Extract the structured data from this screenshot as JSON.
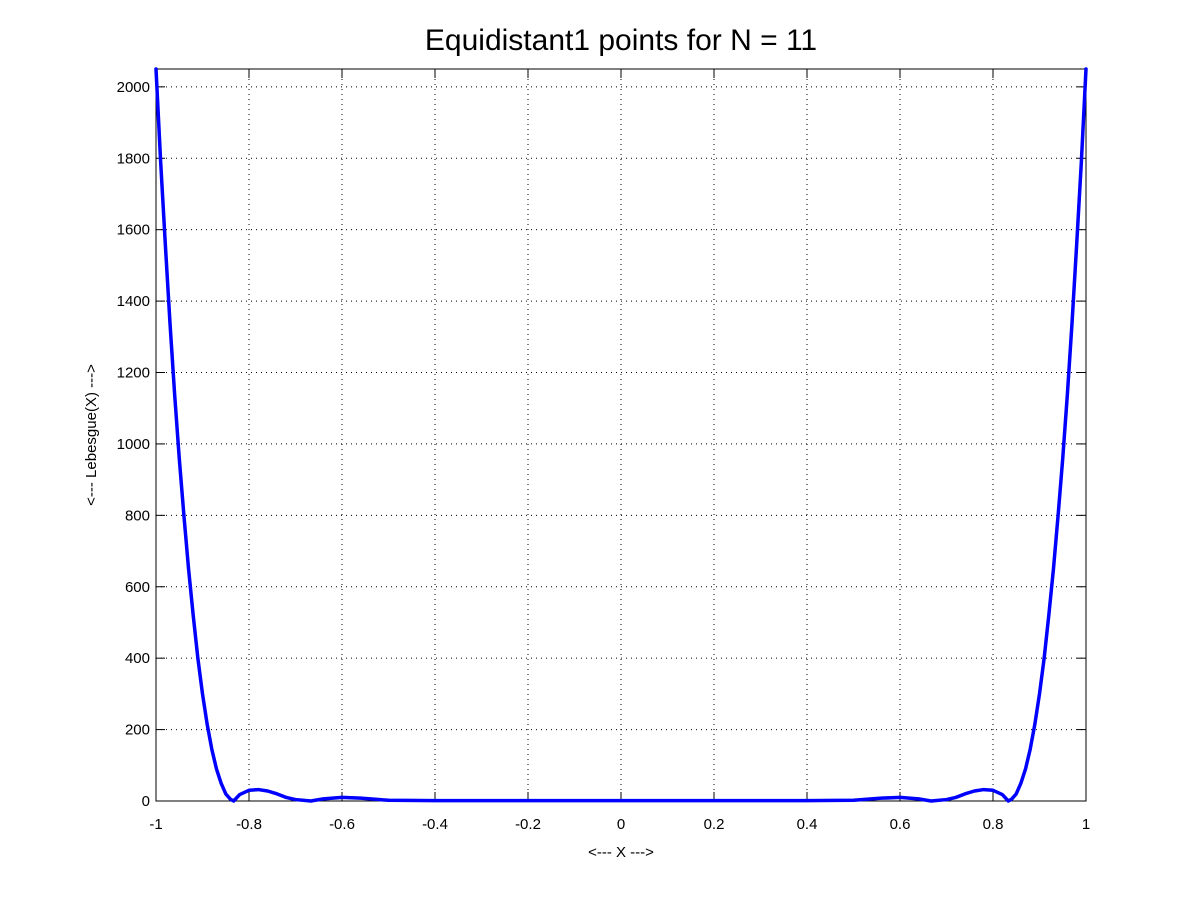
{
  "chart_data": {
    "type": "line",
    "title": "Equidistant1 points for N = 11",
    "xlabel": "<--- X --->",
    "ylabel": "<--- Lebesgue(X) --->",
    "xlim": [
      -1,
      1
    ],
    "ylim": [
      0,
      2050
    ],
    "xticks": [
      -1,
      -0.8,
      -0.6,
      -0.4,
      -0.2,
      0,
      0.2,
      0.4,
      0.6,
      0.8,
      1
    ],
    "xtick_labels": [
      "-1",
      "-0.8",
      "-0.6",
      "-0.4",
      "-0.2",
      "0",
      "0.2",
      "0.4",
      "0.6",
      "0.8",
      "1"
    ],
    "yticks": [
      0,
      200,
      400,
      600,
      800,
      1000,
      1200,
      1400,
      1600,
      1800,
      2000
    ],
    "ytick_labels": [
      "0",
      "200",
      "400",
      "600",
      "800",
      "1000",
      "1200",
      "1400",
      "1600",
      "1800",
      "2000"
    ],
    "grid": true,
    "series": [
      {
        "color": "#0000ff",
        "x": [
          -1.0,
          -0.99,
          -0.98,
          -0.97,
          -0.96,
          -0.95,
          -0.94,
          -0.93,
          -0.92,
          -0.91,
          -0.9,
          -0.89,
          -0.88,
          -0.87,
          -0.86,
          -0.85,
          -0.84,
          -0.833,
          -0.82,
          -0.8,
          -0.78,
          -0.76,
          -0.74,
          -0.72,
          -0.7,
          -0.667,
          -0.64,
          -0.6,
          -0.56,
          -0.5,
          -0.4,
          -0.3,
          -0.2,
          -0.1,
          0.0,
          0.1,
          0.2,
          0.3,
          0.4,
          0.5,
          0.56,
          0.6,
          0.64,
          0.667,
          0.7,
          0.72,
          0.74,
          0.76,
          0.78,
          0.8,
          0.82,
          0.833,
          0.84,
          0.85,
          0.86,
          0.87,
          0.88,
          0.89,
          0.9,
          0.91,
          0.92,
          0.93,
          0.94,
          0.95,
          0.96,
          0.97,
          0.98,
          0.99,
          1.0
        ],
        "y": [
          2050,
          1790,
          1560,
          1340,
          1140,
          960,
          800,
          650,
          520,
          400,
          300,
          215,
          145,
          90,
          50,
          20,
          5,
          0,
          18,
          30,
          32,
          28,
          20,
          10,
          4,
          0,
          6,
          10,
          8,
          2,
          1,
          1,
          1,
          1,
          1,
          1,
          1,
          1,
          1,
          2,
          8,
          10,
          6,
          0,
          4,
          10,
          20,
          28,
          32,
          30,
          18,
          0,
          5,
          20,
          50,
          90,
          145,
          215,
          300,
          400,
          520,
          650,
          800,
          960,
          1140,
          1340,
          1560,
          1790,
          2050
        ]
      }
    ]
  }
}
